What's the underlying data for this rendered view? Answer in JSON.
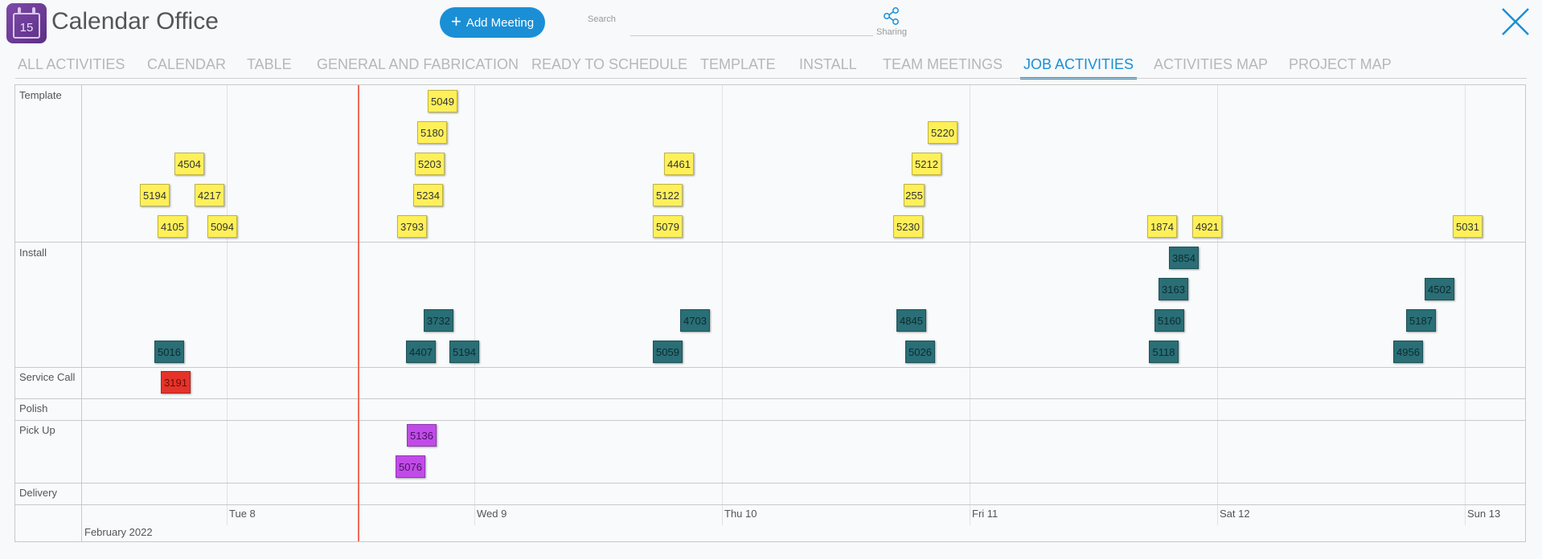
{
  "header": {
    "app_icon_day": "15",
    "title": "Calendar Office",
    "add_meeting_label": "Add Meeting",
    "search_label": "Search",
    "search_value": "",
    "sharing_label": "Sharing"
  },
  "tabs": [
    {
      "label": "ALL ACTIVITIES"
    },
    {
      "label": "CALENDAR"
    },
    {
      "label": "TABLE"
    },
    {
      "label": "GENERAL AND FABRICATION"
    },
    {
      "label": "READY TO SCHEDULE"
    },
    {
      "label": "TEMPLATE"
    },
    {
      "label": "INSTALL"
    },
    {
      "label": "TEAM MEETINGS"
    },
    {
      "label": "JOB ACTIVITIES",
      "active": true
    },
    {
      "label": "ACTIVITIES MAP"
    },
    {
      "label": "PROJECT MAP"
    }
  ],
  "rows": [
    {
      "label": "Template"
    },
    {
      "label": "Install"
    },
    {
      "label": "Service Call"
    },
    {
      "label": "Polish"
    },
    {
      "label": "Pick Up"
    },
    {
      "label": "Delivery"
    }
  ],
  "timeline": {
    "month_label": "February 2022",
    "day_labels": [
      "Tue 8",
      "Wed 9",
      "Thu 10",
      "Fri 11",
      "Sat 12",
      "Sun 13"
    ]
  },
  "colors": {
    "template": "#fff05a",
    "install": "#2a6e76",
    "service_call": "#e5332a",
    "pick_up": "#c14be8",
    "accent": "#1a8fd6",
    "now_line": "#f06a5c"
  },
  "activities": {
    "template": [
      "5049",
      "5180",
      "5220",
      "4504",
      "5203",
      "4461",
      "5212",
      "5194",
      "4217",
      "5234",
      "5122",
      "255",
      "4105",
      "5094",
      "3793",
      "5079",
      "5230",
      "1874",
      "4921",
      "5031"
    ],
    "install": [
      "3854",
      "3163",
      "4502",
      "3732",
      "4703",
      "4845",
      "5160",
      "5187",
      "5016",
      "4407",
      "5194",
      "5059",
      "5026",
      "5118",
      "4956"
    ],
    "service_call": [
      "3191"
    ],
    "pick_up": [
      "5136",
      "5076"
    ]
  }
}
